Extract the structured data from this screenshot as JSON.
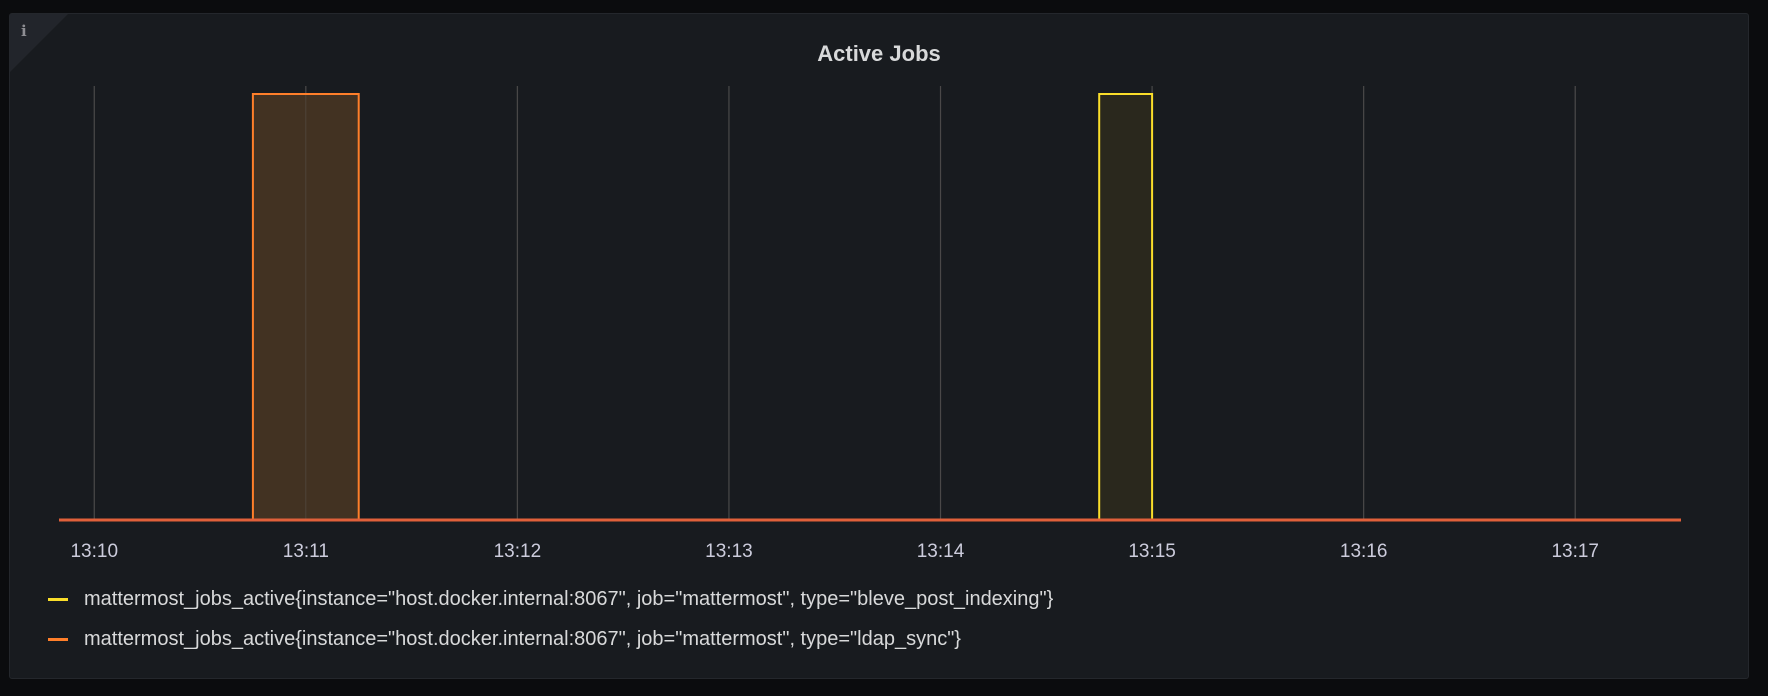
{
  "panel": {
    "title": "Active Jobs",
    "info_icon": "info-icon"
  },
  "chart_data": {
    "type": "area",
    "title": "Active Jobs",
    "xlabel": "",
    "ylabel": "",
    "x_range": [
      "13:09:50",
      "13:17:30"
    ],
    "x_ticks": [
      "13:10",
      "13:11",
      "13:12",
      "13:13",
      "13:14",
      "13:15",
      "13:16",
      "13:17"
    ],
    "ylim": [
      0,
      1
    ],
    "grid": "vertical",
    "legend_position": "bottom",
    "series": [
      {
        "name": "mattermost_jobs_active{instance=\"host.docker.internal:8067\", job=\"mattermost\", type=\"bleve_post_indexing\"}",
        "color": "#fade2a",
        "fill": "#2a281d",
        "points": [
          [
            "13:09:50",
            0
          ],
          [
            "13:14:45",
            0
          ],
          [
            "13:14:45",
            1
          ],
          [
            "13:15:00",
            1
          ],
          [
            "13:15:00",
            0
          ],
          [
            "13:17:30",
            0
          ]
        ]
      },
      {
        "name": "mattermost_jobs_active{instance=\"host.docker.internal:8067\", job=\"mattermost\", type=\"ldap_sync\"}",
        "color": "#ff7f2a",
        "fill": "#423222",
        "points": [
          [
            "13:09:50",
            0
          ],
          [
            "13:10:45",
            0
          ],
          [
            "13:10:45",
            1
          ],
          [
            "13:11:15",
            1
          ],
          [
            "13:11:15",
            0
          ],
          [
            "13:17:30",
            0
          ]
        ]
      }
    ]
  }
}
